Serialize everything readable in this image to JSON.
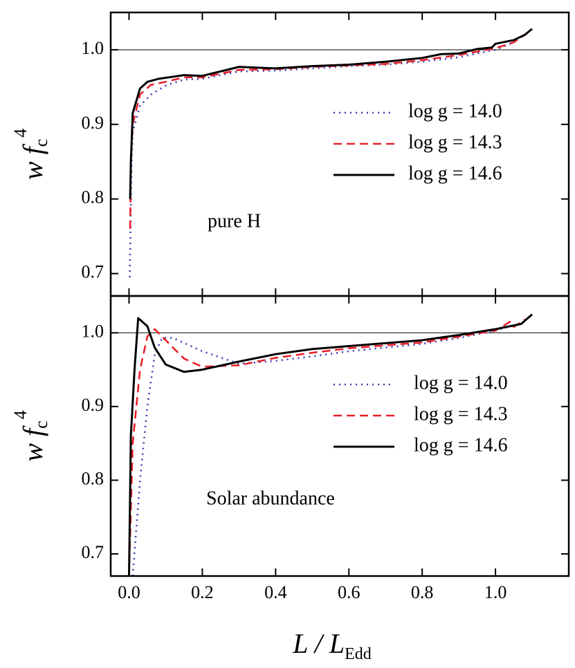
{
  "chart_data": [
    {
      "type": "line",
      "annotation": "pure H",
      "legend": "right",
      "hline": 1,
      "xlim": [
        -0.05,
        1.2
      ],
      "ylim": [
        0.67,
        1.05
      ],
      "xticks": [
        0,
        0.2,
        0.4,
        0.6,
        0.8,
        1
      ],
      "yticks": [
        0.7,
        0.8,
        0.9,
        {
          "value": 1,
          "label": "1.0"
        }
      ],
      "ylabel": {
        "main": "w f",
        "sub": "c",
        "sup": "4"
      },
      "series": [
        {
          "name": "log g = 14.0",
          "color": "#3b3bb0",
          "style": "dotted",
          "x": [
            0.002,
            0.004,
            0.007,
            0.01,
            0.03,
            0.06,
            0.1,
            0.15,
            0.2,
            0.3,
            0.4,
            0.5,
            0.6,
            0.7,
            0.8,
            0.9,
            1.0,
            1.05
          ],
          "values": [
            0.695,
            0.76,
            0.85,
            0.89,
            0.925,
            0.94,
            0.952,
            0.96,
            0.961,
            0.971,
            0.972,
            0.975,
            0.978,
            0.98,
            0.984,
            0.99,
            1.0,
            1.01
          ]
        },
        {
          "name": "log g = 14.3",
          "color": "#e8202a",
          "style": "dashed",
          "x": [
            0.003,
            0.005,
            0.01,
            0.03,
            0.06,
            0.1,
            0.15,
            0.2,
            0.3,
            0.4,
            0.5,
            0.6,
            0.7,
            0.8,
            0.9,
            1.0,
            1.05,
            1.08
          ],
          "values": [
            0.76,
            0.85,
            0.9,
            0.94,
            0.953,
            0.957,
            0.963,
            0.963,
            0.973,
            0.974,
            0.977,
            0.979,
            0.981,
            0.986,
            0.993,
            1.002,
            1.01,
            1.02
          ]
        },
        {
          "name": "log g = 14.6",
          "color": "#000000",
          "style": "solid",
          "x": [
            0.003,
            0.005,
            0.01,
            0.03,
            0.05,
            0.08,
            0.15,
            0.2,
            0.3,
            0.4,
            0.5,
            0.6,
            0.7,
            0.8,
            0.85,
            0.9,
            0.95,
            0.99,
            1.0,
            1.05,
            1.08,
            1.1
          ],
          "values": [
            0.8,
            0.85,
            0.915,
            0.948,
            0.957,
            0.961,
            0.966,
            0.965,
            0.977,
            0.975,
            0.978,
            0.98,
            0.984,
            0.989,
            0.994,
            0.995,
            1.001,
            1.003,
            1.008,
            1.013,
            1.02,
            1.028
          ]
        }
      ]
    },
    {
      "type": "line",
      "annotation": "Solar abundance",
      "legend": "right",
      "hline": 1,
      "xlim": [
        -0.05,
        1.2
      ],
      "ylim": [
        0.67,
        1.05
      ],
      "xticks": [
        {
          "value": 0,
          "label": "0.0"
        },
        0.2,
        0.4,
        0.6,
        0.8,
        {
          "value": 1,
          "label": "1.0"
        }
      ],
      "yticks": [
        0.7,
        0.8,
        0.9,
        {
          "value": 1,
          "label": "1.0"
        }
      ],
      "ylabel": {
        "main": "w f",
        "sub": "c",
        "sup": "4"
      },
      "xlabel": {
        "main": "L / L",
        "sub": "Edd"
      },
      "series": [
        {
          "name": "log g = 14.0",
          "color": "#3b3bb0",
          "style": "dotted",
          "x": [
            0.01,
            0.03,
            0.05,
            0.07,
            0.09,
            0.12,
            0.2,
            0.3,
            0.4,
            0.5,
            0.6,
            0.7,
            0.8,
            0.9,
            1.0,
            1.05
          ],
          "values": [
            0.67,
            0.8,
            0.9,
            0.97,
            0.993,
            0.993,
            0.975,
            0.958,
            0.962,
            0.968,
            0.975,
            0.98,
            0.985,
            0.993,
            1.003,
            1.01
          ]
        },
        {
          "name": "log g = 14.3",
          "color": "#e8202a",
          "style": "dashed",
          "x": [
            0.0,
            0.01,
            0.03,
            0.05,
            0.07,
            0.1,
            0.15,
            0.2,
            0.3,
            0.4,
            0.5,
            0.6,
            0.7,
            0.8,
            0.9,
            1.0,
            1.04,
            1.05,
            1.08
          ],
          "values": [
            0.67,
            0.85,
            0.95,
            0.995,
            1.005,
            0.99,
            0.965,
            0.954,
            0.956,
            0.966,
            0.973,
            0.979,
            0.983,
            0.987,
            0.995,
            1.003,
            1.015,
            1.008,
            1.018
          ]
        },
        {
          "name": "log g = 14.6",
          "color": "#000000",
          "style": "solid",
          "x": [
            0.0,
            0.005,
            0.015,
            0.025,
            0.05,
            0.07,
            0.1,
            0.15,
            0.2,
            0.3,
            0.4,
            0.5,
            0.6,
            0.7,
            0.8,
            0.9,
            1.0,
            1.05,
            1.07,
            1.1
          ],
          "values": [
            0.67,
            0.86,
            0.95,
            1.02,
            1.009,
            0.98,
            0.957,
            0.947,
            0.95,
            0.961,
            0.971,
            0.978,
            0.982,
            0.986,
            0.99,
            0.997,
            1.005,
            1.01,
            1.012,
            1.025
          ]
        }
      ]
    }
  ]
}
